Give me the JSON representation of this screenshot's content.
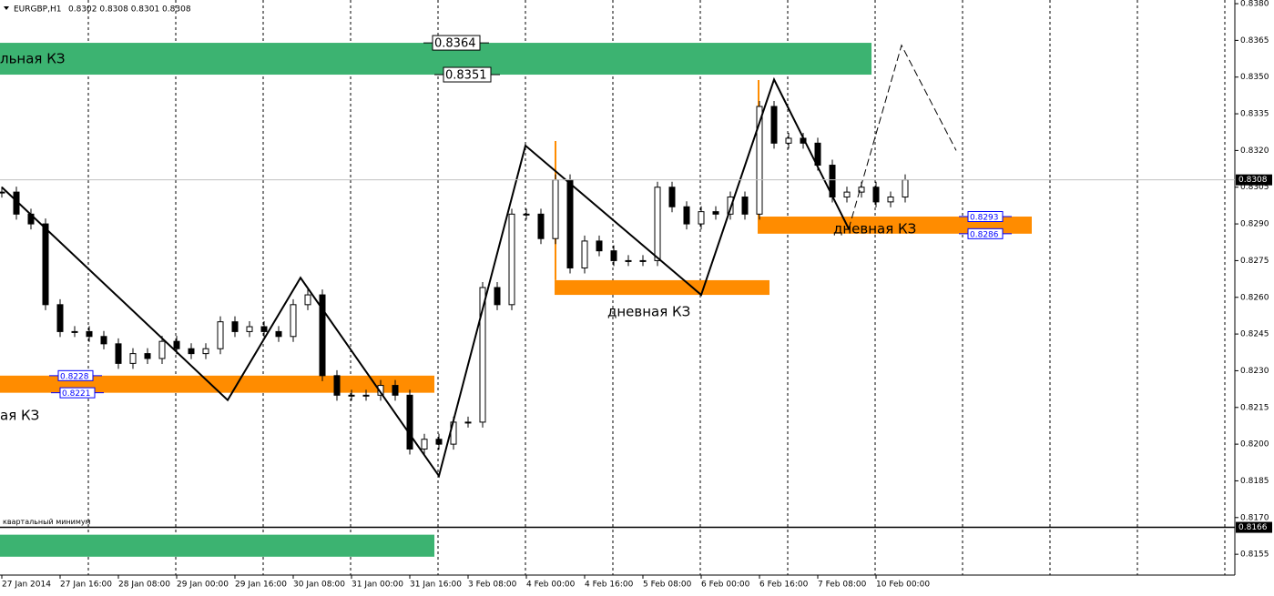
{
  "header": {
    "symbol": "EURGBP,H1",
    "ohlc": "0.8302 0.8308 0.8301 0.8308"
  },
  "price_axis": {
    "ylim": [
      0.83815,
      0.81465
    ],
    "ticks": [
      {
        "value": 0.838,
        "label": "0.8380"
      },
      {
        "value": 0.8365,
        "label": "0.8365"
      },
      {
        "value": 0.835,
        "label": "0.8350"
      },
      {
        "value": 0.8335,
        "label": "0.8335"
      },
      {
        "value": 0.832,
        "label": "0.8320"
      },
      {
        "value": 0.8305,
        "label": "0.8305"
      },
      {
        "value": 0.829,
        "label": "0.8290"
      },
      {
        "value": 0.8275,
        "label": "0.8275"
      },
      {
        "value": 0.826,
        "label": "0.8260"
      },
      {
        "value": 0.8245,
        "label": "0.8245"
      },
      {
        "value": 0.823,
        "label": "0.8230"
      },
      {
        "value": 0.8215,
        "label": "0.8215"
      },
      {
        "value": 0.82,
        "label": "0.8200"
      },
      {
        "value": 0.8185,
        "label": "0.8185"
      },
      {
        "value": 0.817,
        "label": "0.8170"
      },
      {
        "value": 0.8155,
        "label": "0.8155"
      }
    ],
    "current": {
      "value": 0.8308,
      "label": "0.8308"
    }
  },
  "time_axis": [
    "27 Jan 2014",
    "27 Jan 16:00",
    "28 Jan 08:00",
    "29 Jan 00:00",
    "29 Jan 16:00",
    "30 Jan 08:00",
    "31 Jan 00:00",
    "31 Jan 16:00",
    "3 Feb 08:00",
    "4 Feb 00:00",
    "4 Feb 16:00",
    "5 Feb 08:00",
    "6 Feb 00:00",
    "6 Feb 16:00",
    "7 Feb 08:00",
    "10 Feb 00:00"
  ],
  "closes": [
    0.8303,
    0.8294,
    0.829,
    0.8257,
    0.8246,
    0.8246,
    0.8244,
    0.8241,
    0.8233,
    0.8237,
    0.8235,
    0.8242,
    0.8239,
    0.8237,
    0.8239,
    0.825,
    0.8246,
    0.8248,
    0.8246,
    0.8244,
    0.8257,
    0.8261,
    0.8228,
    0.822,
    0.822,
    0.822,
    0.8224,
    0.822,
    0.8198,
    0.8202,
    0.82,
    0.8209,
    0.8209,
    0.8264,
    0.8257,
    0.8294,
    0.8294,
    0.8284,
    0.8308,
    0.8272,
    0.8283,
    0.8279,
    0.8275,
    0.8275,
    0.8275,
    0.8305,
    0.8297,
    0.829,
    0.8295,
    0.8294,
    0.8301,
    0.8294,
    0.8338,
    0.8323,
    0.8325,
    0.8323,
    0.8314,
    0.8301,
    0.8303,
    0.8305,
    0.8299,
    0.8301,
    0.8308
  ],
  "zigzag": [
    0.8305,
    0.8218,
    0.8268,
    0.8187,
    0.8322,
    0.8261,
    0.8349,
    0.8288
  ],
  "projection": [
    0.8288,
    0.8363,
    0.832
  ],
  "zones": [
    {
      "label": "льная КЗ",
      "top": {
        "value": 0.8364,
        "label": "0.8364"
      },
      "bottom": {
        "value": 0.8351,
        "label": "0.8351"
      },
      "color": "#3cb371"
    },
    {
      "label": "ая КЗ",
      "top": {
        "value": 0.8228,
        "label": "0.8228"
      },
      "bottom": {
        "value": 0.8221,
        "label": "0.8221"
      },
      "color": "#ff8c00"
    },
    {
      "label": "дневная КЗ",
      "top": 0.8267,
      "bottom": 0.8261,
      "color": "#ff8c00"
    },
    {
      "label": "дневная КЗ",
      "top": {
        "value": 0.8293,
        "label": "0.8293"
      },
      "bottom": {
        "value": 0.8286,
        "label": "0.8286"
      },
      "color": "#ff8c00"
    },
    {
      "top": 0.8163,
      "bottom": 0.8154,
      "color": "#3cb371"
    }
  ],
  "level": {
    "label": "квартальный минимум",
    "value": {
      "value": 0.8166,
      "label": "0.8166"
    }
  }
}
